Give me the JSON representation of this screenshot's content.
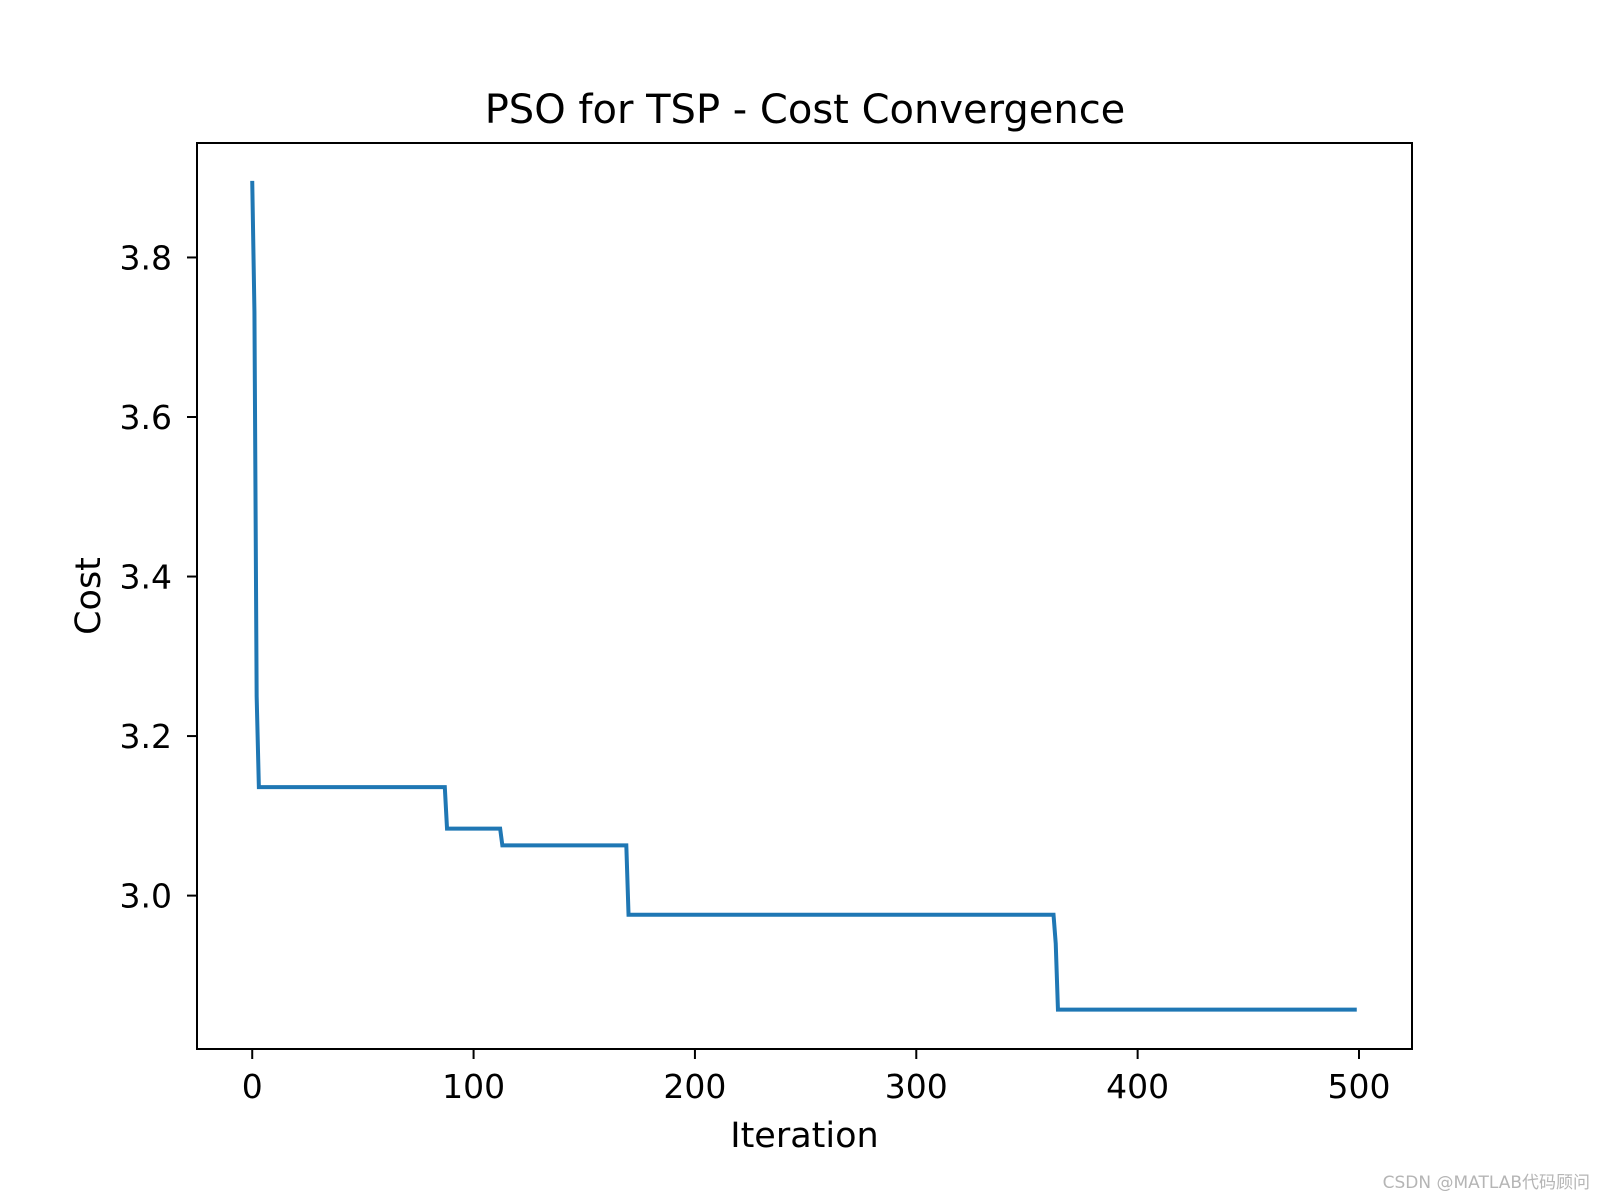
{
  "chart_data": {
    "type": "line",
    "title": "PSO for TSP - Cost Convergence",
    "xlabel": "Iteration",
    "ylabel": "Cost",
    "xlim": [
      -24.95,
      523.95
    ],
    "ylim": [
      2.8077,
      3.9435
    ],
    "xticks": [
      0,
      100,
      200,
      300,
      400,
      500
    ],
    "xtick_labels": [
      "0",
      "100",
      "200",
      "300",
      "400",
      "500"
    ],
    "yticks": [
      3.0,
      3.2,
      3.4,
      3.6,
      3.8
    ],
    "ytick_labels": [
      "3.0",
      "3.2",
      "3.4",
      "3.6",
      "3.8"
    ],
    "grid": false,
    "legend": null,
    "series": [
      {
        "name": "Cost",
        "color": "#1f77b4",
        "x": [
          0,
          1,
          2,
          3,
          87,
          88,
          112,
          113,
          169,
          170,
          362,
          363,
          364,
          499
        ],
        "y": [
          3.896,
          3.732,
          3.25,
          3.136,
          3.136,
          3.084,
          3.084,
          3.063,
          3.063,
          2.976,
          2.976,
          2.94,
          2.857,
          2.857
        ]
      }
    ]
  },
  "watermark": "CSDN @MATLAB代码顾问"
}
